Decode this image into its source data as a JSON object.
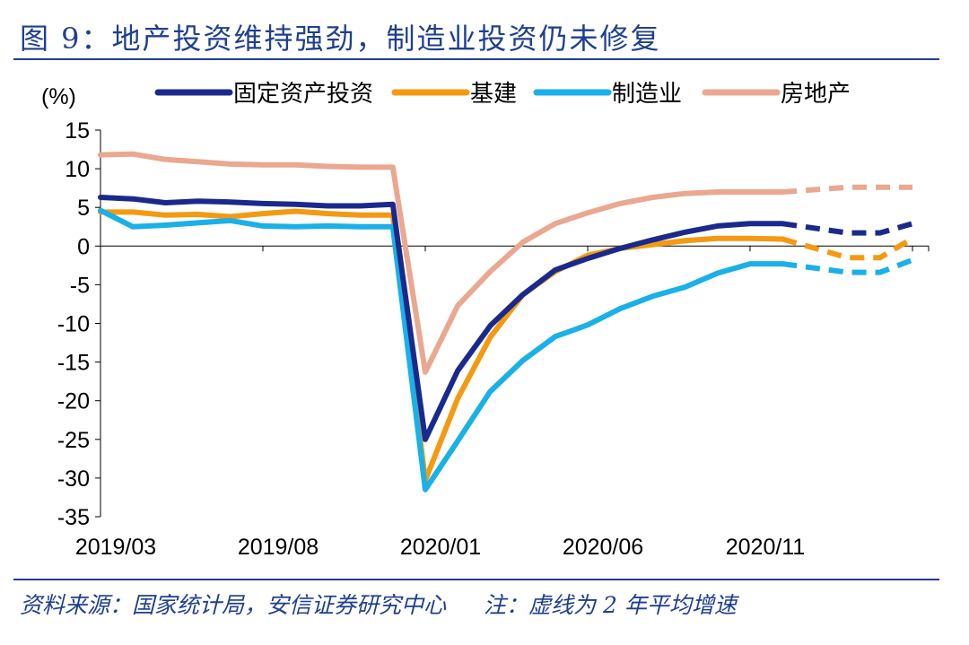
{
  "title": "图 9：地产投资维持强劲，制造业投资仍未修复",
  "footer": {
    "source": "资料来源：国家统计局，安信证券研究中心",
    "note": "注：虚线为 2 年平均增速"
  },
  "chart_data": {
    "type": "line",
    "ylabel": "(%)",
    "ylim": [
      -35,
      15
    ],
    "yticks": [
      "15",
      "10",
      "5",
      "0",
      "-5",
      "-10",
      "-15",
      "-20",
      "-25",
      "-30",
      "-35"
    ],
    "x_ticklabels": [
      "2019/03",
      "2019/08",
      "2020/01",
      "2020/06",
      "2020/11"
    ],
    "x": [
      "2019/03",
      "2019/04",
      "2019/05",
      "2019/06",
      "2019/07",
      "2019/08",
      "2019/09",
      "2019/10",
      "2019/11",
      "2019/12",
      "2020/01",
      "2020/02",
      "2020/03",
      "2020/04",
      "2020/05",
      "2020/06",
      "2020/07",
      "2020/08",
      "2020/09",
      "2020/10",
      "2020/11",
      "2020/12",
      "2021/01",
      "2021/02",
      "2021/03",
      "2021/04"
    ],
    "dashed_from": "2020/12",
    "legend_position": "top",
    "series": [
      {
        "name": "固定资产投资",
        "color": "#1a2a8c",
        "values": [
          6.3,
          6.1,
          5.6,
          5.8,
          5.7,
          5.5,
          5.4,
          5.2,
          5.2,
          5.4,
          -25,
          -16.1,
          -10.3,
          -6.3,
          -3.1,
          -1.6,
          -0.3,
          0.8,
          1.8,
          2.6,
          2.9,
          2.9,
          null,
          1.7,
          1.7,
          2.9
        ]
      },
      {
        "name": "基建",
        "color": "#f39a12",
        "values": [
          4.4,
          4.4,
          4.0,
          4.1,
          3.8,
          4.2,
          4.5,
          4.2,
          4.0,
          4.0,
          -30.3,
          -19.7,
          -11.8,
          -6.3,
          -3.3,
          -1.2,
          -0.3,
          0.2,
          0.7,
          1.0,
          1.0,
          0.9,
          null,
          -1.5,
          -1.5,
          1.0
        ]
      },
      {
        "name": "制造业",
        "color": "#1ab0e8",
        "values": [
          4.6,
          2.5,
          2.7,
          3.0,
          3.3,
          2.6,
          2.5,
          2.6,
          2.5,
          2.5,
          -31.5,
          -25.2,
          -18.8,
          -14.8,
          -11.7,
          -10.2,
          -8.1,
          -6.5,
          -5.3,
          -3.5,
          -2.3,
          -2.3,
          null,
          -3.4,
          -3.4,
          -1.8
        ]
      },
      {
        "name": "房地产",
        "color": "#e9a88f",
        "values": [
          11.8,
          11.9,
          11.2,
          10.9,
          10.6,
          10.5,
          10.5,
          10.3,
          10.2,
          10.2,
          -16.3,
          -7.7,
          -3.3,
          0.5,
          2.9,
          4.3,
          5.5,
          6.3,
          6.8,
          7.0,
          7.0,
          7.0,
          null,
          7.6,
          7.6,
          7.6
        ]
      }
    ]
  }
}
